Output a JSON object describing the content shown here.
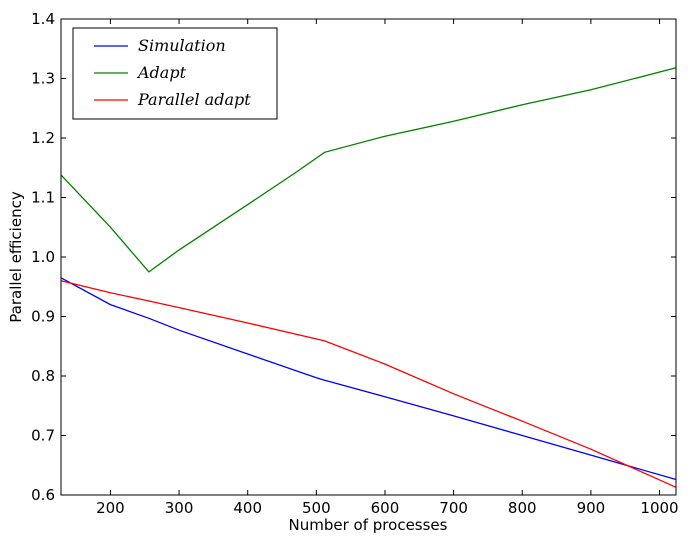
{
  "chart_data": {
    "type": "line",
    "title": "",
    "xlabel": "Number of processes",
    "ylabel": "Parallel efficiency",
    "xlim": [
      128,
      1024
    ],
    "ylim": [
      0.6,
      1.4
    ],
    "xticks": [
      200,
      300,
      400,
      500,
      600,
      700,
      800,
      900,
      1000
    ],
    "xtick_labels": [
      "200",
      "300",
      "400",
      "500",
      "600",
      "700",
      "800",
      "900",
      "1000"
    ],
    "yticks": [
      0.6,
      0.7,
      0.8,
      0.9,
      1.0,
      1.1,
      1.2,
      1.3,
      1.4
    ],
    "ytick_labels": [
      "0.6",
      "0.7",
      "0.8",
      "0.9",
      "1.0",
      "1.1",
      "1.2",
      "1.3",
      "1.4"
    ],
    "grid": false,
    "legend_position": "top-left",
    "series": [
      {
        "name": "Simulation",
        "color": "#0000ff",
        "x": [
          128,
          200,
          256,
          300,
          400,
          500,
          512,
          600,
          700,
          800,
          900,
          1024
        ],
        "y": [
          0.965,
          0.92,
          0.897,
          0.877,
          0.837,
          0.797,
          0.793,
          0.765,
          0.733,
          0.7,
          0.667,
          0.626
        ]
      },
      {
        "name": "Adapt",
        "color": "#008000",
        "x": [
          128,
          200,
          256,
          300,
          400,
          470,
          512,
          600,
          700,
          800,
          900,
          1024
        ],
        "y": [
          1.138,
          1.05,
          0.975,
          1.012,
          1.088,
          1.142,
          1.176,
          1.203,
          1.228,
          1.256,
          1.281,
          1.318
        ]
      },
      {
        "name": "Parallel adapt",
        "color": "#ff0000",
        "x": [
          128,
          200,
          256,
          300,
          400,
          512,
          600,
          700,
          800,
          900,
          1024
        ],
        "y": [
          0.96,
          0.94,
          0.926,
          0.915,
          0.889,
          0.859,
          0.82,
          0.77,
          0.724,
          0.677,
          0.613
        ]
      }
    ]
  }
}
